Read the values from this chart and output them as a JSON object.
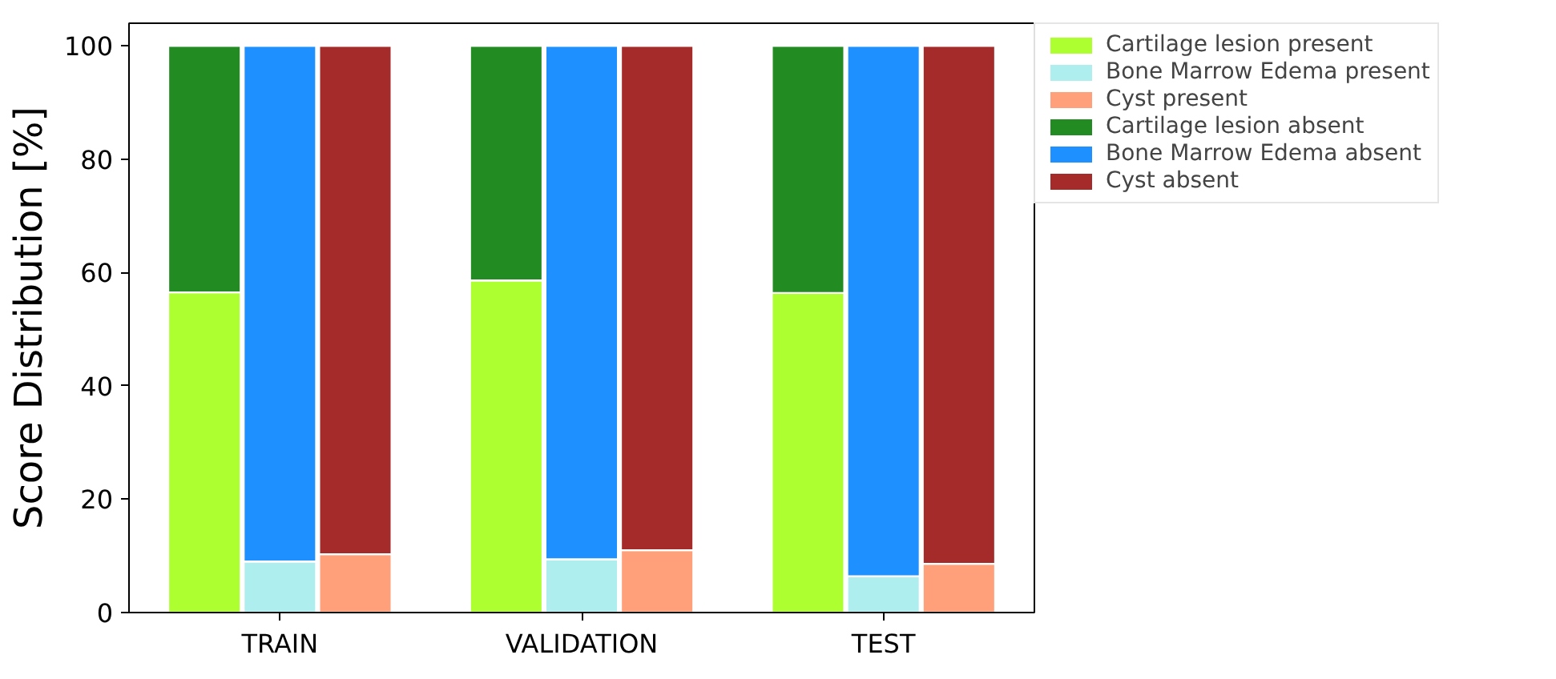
{
  "chart_data": {
    "type": "bar",
    "stacked": true,
    "ylabel": "Score Distribution [%]",
    "categories": [
      null,
      "TRAIN",
      null,
      null,
      null,
      "VALIDATION",
      null,
      null,
      null,
      "TEST",
      null
    ],
    "ylim": [
      0,
      104
    ],
    "yticks": [
      0,
      20,
      40,
      60,
      80,
      100
    ],
    "legend": "top right",
    "grid": false,
    "series": [
      {
        "name": "Cartilage lesion present",
        "color": "#adff2f",
        "values": [
          56.5,
          null,
          null,
          null,
          58.6,
          null,
          null,
          null,
          56.4,
          null,
          null
        ]
      },
      {
        "name": "Bone Marrow Edema present",
        "color": "#afeeee",
        "values": [
          null,
          9.0,
          null,
          null,
          null,
          9.4,
          null,
          null,
          null,
          6.4,
          null
        ]
      },
      {
        "name": "Cyst present",
        "color": "#ffa07a",
        "values": [
          null,
          null,
          10.3,
          null,
          null,
          null,
          11.0,
          null,
          null,
          null,
          8.6
        ]
      },
      {
        "name": "Cartilage lesion absent",
        "color": "#228b22",
        "values": [
          43.5,
          null,
          null,
          null,
          41.4,
          null,
          null,
          null,
          43.6,
          null,
          null
        ]
      },
      {
        "name": "Bone Marrow Edema absent",
        "color": "#1e90ff",
        "values": [
          null,
          91.0,
          null,
          null,
          null,
          90.6,
          null,
          null,
          null,
          93.6,
          null
        ]
      },
      {
        "name": "Cyst absent",
        "color": "#a52a2a",
        "values": [
          null,
          null,
          89.7,
          null,
          null,
          null,
          89.0,
          null,
          null,
          null,
          91.4
        ]
      }
    ]
  }
}
